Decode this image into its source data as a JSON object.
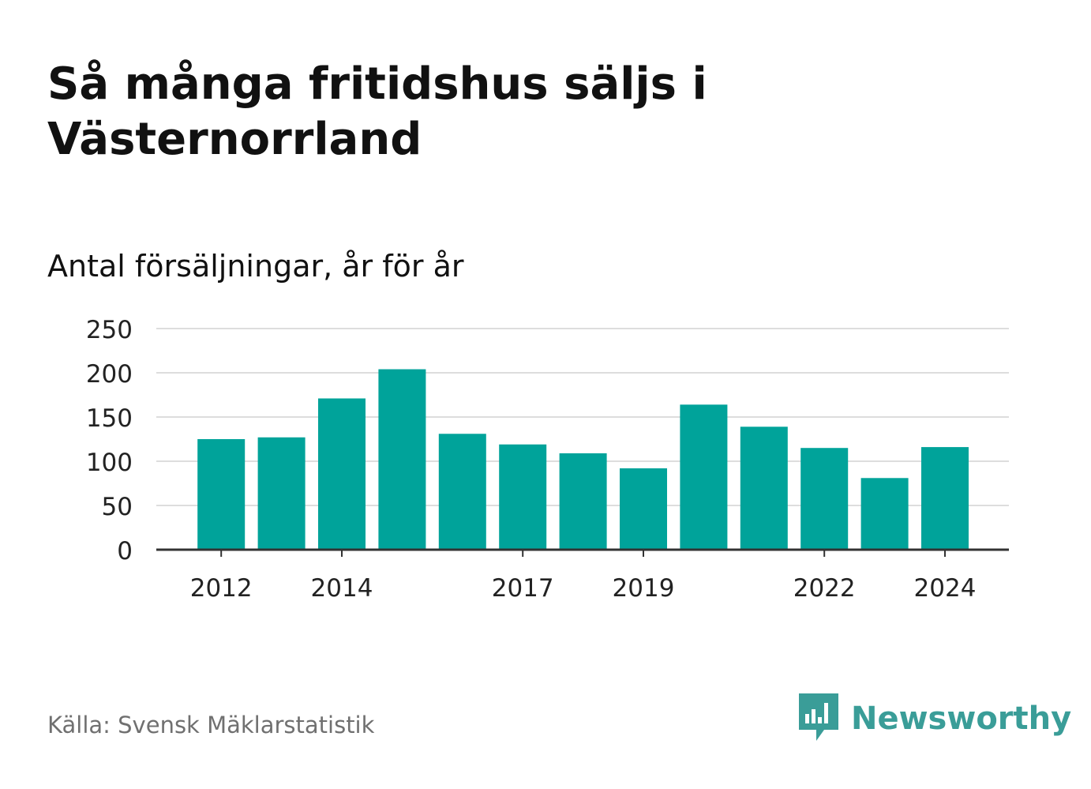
{
  "header": {
    "title": "Så många fritidshus säljs i Västernorrland",
    "subtitle": "Antal försäljningar, år för år"
  },
  "footer": {
    "source": "Källa: Svensk Mäklarstatistik",
    "brand": "Newsworthy",
    "brand_icon": "newsworthy-logo-icon"
  },
  "colors": {
    "bar": "#00a39a",
    "grid": "#dddddd",
    "axis": "#333333",
    "brand": "#3a9d98"
  },
  "chart_data": {
    "type": "bar",
    "categories": [
      "2012",
      "2013",
      "2014",
      "2015",
      "2016",
      "2017",
      "2018",
      "2019",
      "2020",
      "2021",
      "2022",
      "2023",
      "2024"
    ],
    "values": [
      125,
      127,
      171,
      204,
      131,
      119,
      109,
      92,
      164,
      139,
      115,
      81,
      116
    ],
    "x_tick_labels": [
      "2012",
      "2014",
      "2017",
      "2019",
      "2022",
      "2024"
    ],
    "y_ticks": [
      0,
      50,
      100,
      150,
      200,
      250
    ],
    "ylim": [
      0,
      250
    ],
    "grid": true,
    "xlabel": "",
    "ylabel": ""
  }
}
